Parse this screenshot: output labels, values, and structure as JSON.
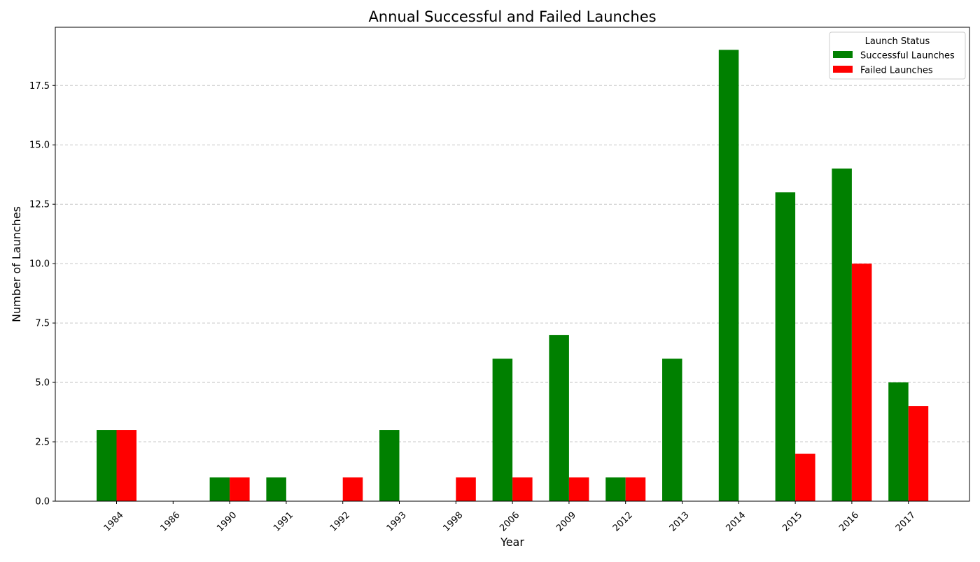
{
  "chart_data": {
    "type": "bar",
    "title": "Annual Successful and Failed Launches",
    "xlabel": "Year",
    "ylabel": "Number of Launches",
    "categories": [
      "1984",
      "1986",
      "1990",
      "1991",
      "1992",
      "1993",
      "1998",
      "2006",
      "2009",
      "2012",
      "2013",
      "2014",
      "2015",
      "2016",
      "2017"
    ],
    "series": [
      {
        "name": "Successful Launches",
        "color": "#008000",
        "values": [
          3,
          0,
          1,
          1,
          0,
          3,
          0,
          6,
          7,
          1,
          6,
          19,
          13,
          14,
          5
        ]
      },
      {
        "name": "Failed Launches",
        "color": "#ff0000",
        "values": [
          3,
          0,
          1,
          0,
          1,
          0,
          1,
          1,
          1,
          1,
          0,
          0,
          2,
          10,
          4
        ]
      }
    ],
    "ylim": [
      0,
      19.95
    ],
    "yticks": [
      "0.0",
      "2.5",
      "5.0",
      "7.5",
      "10.0",
      "12.5",
      "15.0",
      "17.5"
    ],
    "grid": "y, dashed",
    "legend": {
      "title": "Launch Status",
      "placement": "top-right"
    }
  }
}
